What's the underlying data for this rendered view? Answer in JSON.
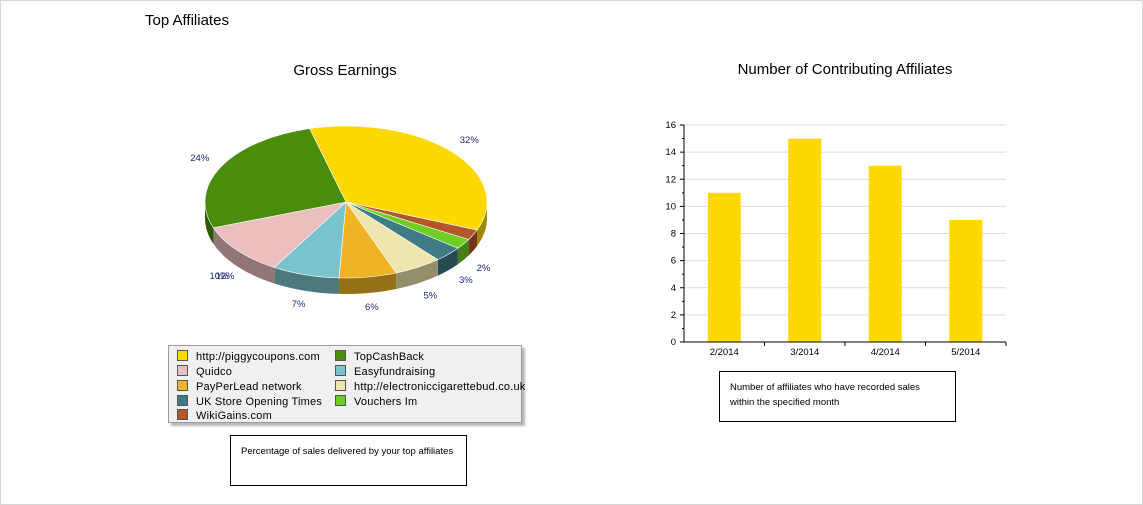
{
  "page": {
    "title": "Top Affiliates"
  },
  "colors": {
    "yellow": "#FFD800",
    "green": "#4A8C0C",
    "pink": "#EABFBE",
    "blue": "#79C3CC",
    "orange": "#EEB425",
    "cream": "#EEE6AD",
    "teal": "#3E7B85",
    "lime": "#6CCF22",
    "brown": "#B4562A"
  },
  "chart_data": [
    {
      "type": "pie",
      "title": "Gross Earnings",
      "slices": [
        {
          "name": "http://piggycoupons.com",
          "value": 32,
          "label": "32%",
          "color": "#FFD800"
        },
        {
          "name": "WikiGains.com",
          "value": 2,
          "label": "",
          "color": "#B4562A"
        },
        {
          "name": "Vouchers Im",
          "value": 2,
          "label": "2%",
          "color": "#6CCF22"
        },
        {
          "name": "UK Store Opening Times",
          "value": 3,
          "label": "3%",
          "color": "#3E7B85"
        },
        {
          "name": "http://electroniccigarettebud.co.uk",
          "value": 5,
          "label": "5%",
          "color": "#EEE6AD"
        },
        {
          "name": "PayPerLead network",
          "value": 6,
          "label": "6%",
          "color": "#EEB425"
        },
        {
          "name": "Easyfundraising",
          "value": 7,
          "label": "7%",
          "color": "#79C3CC"
        },
        {
          "name": "Quidco",
          "value": 10,
          "label": "10%",
          "color": "#EABFBE"
        },
        {
          "name": "TopCashBack",
          "value": 24,
          "label": "24%",
          "color": "#4A8C0C"
        }
      ],
      "extra_labels": [
        "12%"
      ],
      "legend": [
        {
          "name": "http://piggycoupons.com",
          "color": "#FFD800"
        },
        {
          "name": "TopCashBack",
          "color": "#4A8C0C"
        },
        {
          "name": "Quidco",
          "color": "#EABFBE"
        },
        {
          "name": "Easyfundraising",
          "color": "#79C3CC"
        },
        {
          "name": "PayPerLead network",
          "color": "#EEB425"
        },
        {
          "name": "http://electroniccigarettebud.co.uk",
          "color": "#EEE6AD"
        },
        {
          "name": "UK Store Opening Times",
          "color": "#3E7B85"
        },
        {
          "name": "Vouchers Im",
          "color": "#6CCF22"
        },
        {
          "name": "WikiGains.com",
          "color": "#B4562A"
        }
      ],
      "note": "Percentage of sales delivered by your top affiliates"
    },
    {
      "type": "bar",
      "title": "Number of Contributing Affiliates",
      "categories": [
        "2/2014",
        "3/2014",
        "4/2014",
        "5/2014"
      ],
      "values": [
        11,
        15,
        13,
        9
      ],
      "ylim": [
        0,
        16
      ],
      "yticks": [
        0,
        2,
        4,
        6,
        8,
        10,
        12,
        14,
        16
      ],
      "ytick_labels": [
        "0",
        "2",
        "4",
        "6",
        "8",
        "10",
        "12",
        "14",
        "16"
      ],
      "bar_color": "#FFD800",
      "grid": true,
      "note": "Number of affiliates who have recorded sales within the specified month"
    }
  ]
}
